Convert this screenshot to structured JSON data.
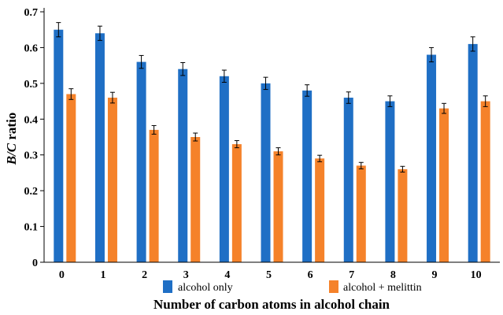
{
  "chart_data": {
    "type": "bar",
    "xlabel": "Number of carbon atoms in alcohol chain",
    "ylabel_italic": "B/C",
    "ylabel_rest": " ratio",
    "categories": [
      "0",
      "1",
      "2",
      "3",
      "4",
      "5",
      "6",
      "7",
      "8",
      "9",
      "10"
    ],
    "ylim": [
      0,
      0.7
    ],
    "yticks": [
      "0",
      "0.1",
      "0.2",
      "0.3",
      "0.4",
      "0.5",
      "0.6",
      "0.7"
    ],
    "grid": false,
    "legend_position": "bottom",
    "series": [
      {
        "name": "alcohol only",
        "color": "#1f6fc5",
        "values": [
          0.65,
          0.64,
          0.56,
          0.54,
          0.52,
          0.5,
          0.48,
          0.46,
          0.45,
          0.58,
          0.61
        ],
        "errors": [
          0.02,
          0.02,
          0.018,
          0.018,
          0.017,
          0.017,
          0.016,
          0.016,
          0.015,
          0.02,
          0.02
        ]
      },
      {
        "name": "alcohol + melittin",
        "color": "#f5822a",
        "values": [
          0.47,
          0.46,
          0.37,
          0.35,
          0.33,
          0.31,
          0.29,
          0.27,
          0.26,
          0.43,
          0.45
        ],
        "errors": [
          0.015,
          0.015,
          0.012,
          0.011,
          0.01,
          0.01,
          0.009,
          0.009,
          0.008,
          0.014,
          0.015
        ]
      }
    ]
  }
}
